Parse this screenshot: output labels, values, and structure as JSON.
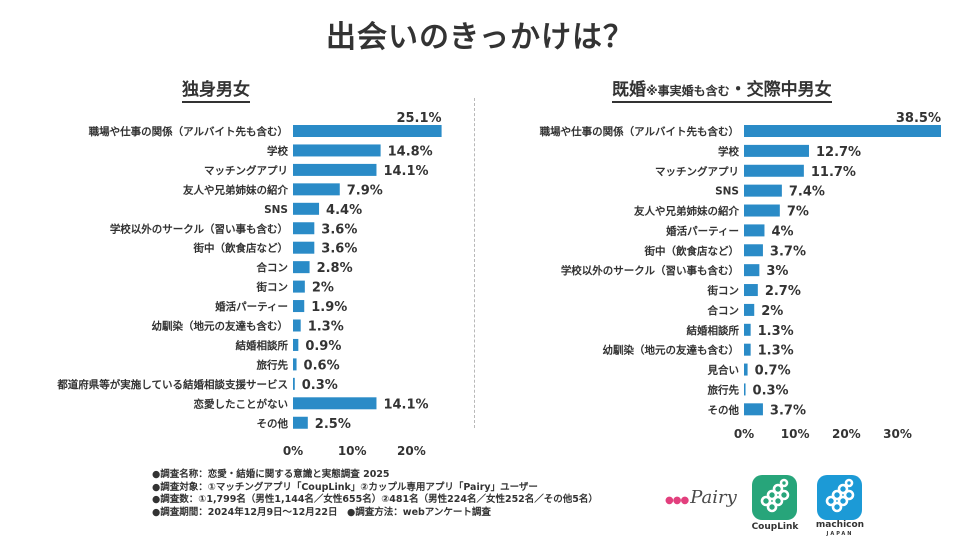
{
  "page": {
    "title": "出会いのきっかけは？",
    "left_title": "独身男女",
    "right_title_main": "既婚",
    "right_title_note": "※事実婚も含む",
    "right_title_rest": "・交際中男女"
  },
  "colors": {
    "bar": "#2a8bc7",
    "text": "#333333",
    "pairy_pink": "#e23f7d",
    "couplink_green": "#27a57a",
    "machicon_blue": "#1c9ad6"
  },
  "chart_data": [
    {
      "type": "bar",
      "orientation": "horizontal",
      "title": "独身男女",
      "categories": [
        "職場や仕事の関係（アルバイト先も含む）",
        "学校",
        "マッチングアプリ",
        "友人や兄弟姉妹の紹介",
        "SNS",
        "学校以外のサークル（習い事も含む）",
        "街中（飲食店など）",
        "合コン",
        "街コン",
        "婚活パーティー",
        "幼馴染（地元の友達も含む）",
        "結婚相談所",
        "旅行先",
        "都道府県等が実施している結婚相談支援サービス",
        "恋愛したことがない",
        "その他"
      ],
      "values": [
        25.1,
        14.8,
        14.1,
        7.9,
        4.4,
        3.6,
        3.6,
        2.8,
        2,
        1.9,
        1.3,
        0.9,
        0.6,
        0.3,
        14.1,
        2.5
      ],
      "value_labels": [
        "25.1%",
        "14.8%",
        "14.1%",
        "7.9%",
        "4.4%",
        "3.6%",
        "3.6%",
        "2.8%",
        "2%",
        "1.9%",
        "1.3%",
        "0.9%",
        "0.6%",
        "0.3%",
        "14.1%",
        "2.5%"
      ],
      "xlim": [
        0,
        25
      ],
      "ticks": [
        0,
        10,
        20
      ],
      "tick_labels": [
        "0%",
        "10%",
        "20%"
      ]
    },
    {
      "type": "bar",
      "orientation": "horizontal",
      "title": "既婚※事実婚も含む・交際中男女",
      "categories": [
        "職場や仕事の関係（アルバイト先も含む）",
        "学校",
        "マッチングアプリ",
        "SNS",
        "友人や兄弟姉妹の紹介",
        "婚活パーティー",
        "街中（飲食店など）",
        "学校以外のサークル（習い事も含む）",
        "街コン",
        "合コン",
        "結婚相談所",
        "幼馴染（地元の友達も含む）",
        "見合い",
        "旅行先",
        "その他"
      ],
      "values": [
        38.5,
        12.7,
        11.7,
        7.4,
        7,
        4,
        3.7,
        3,
        2.7,
        2,
        1.3,
        1.3,
        0.7,
        0.3,
        3.7
      ],
      "value_labels": [
        "38.5%",
        "12.7%",
        "11.7%",
        "7.4%",
        "7%",
        "4%",
        "3.7%",
        "3%",
        "2.7%",
        "2%",
        "1.3%",
        "1.3%",
        "0.7%",
        "0.3%",
        "3.7%"
      ],
      "xlim": [
        0,
        38.5
      ],
      "ticks": [
        0,
        10,
        20,
        30
      ],
      "tick_labels": [
        "0%",
        "10%",
        "20%",
        "30%"
      ]
    }
  ],
  "notes": [
    "●調査名称：恋愛・結婚に関する意識と実態調査 2025",
    "●調査対象：①マッチングアプリ「CoupLink」②カップル専用アプリ「Pairy」ユーザー",
    "●調査数：①1,799名（男性1,144名／女性655名）②481名（男性224名／女性252名／その他5名）",
    "●調査期間：2024年12月9日〜12月22日　●調査方法：webアンケート調査"
  ],
  "logos": {
    "pairy": "Pairy",
    "couplink": "CoupLink",
    "machicon": "machicon",
    "machicon_sub": "JAPAN"
  }
}
